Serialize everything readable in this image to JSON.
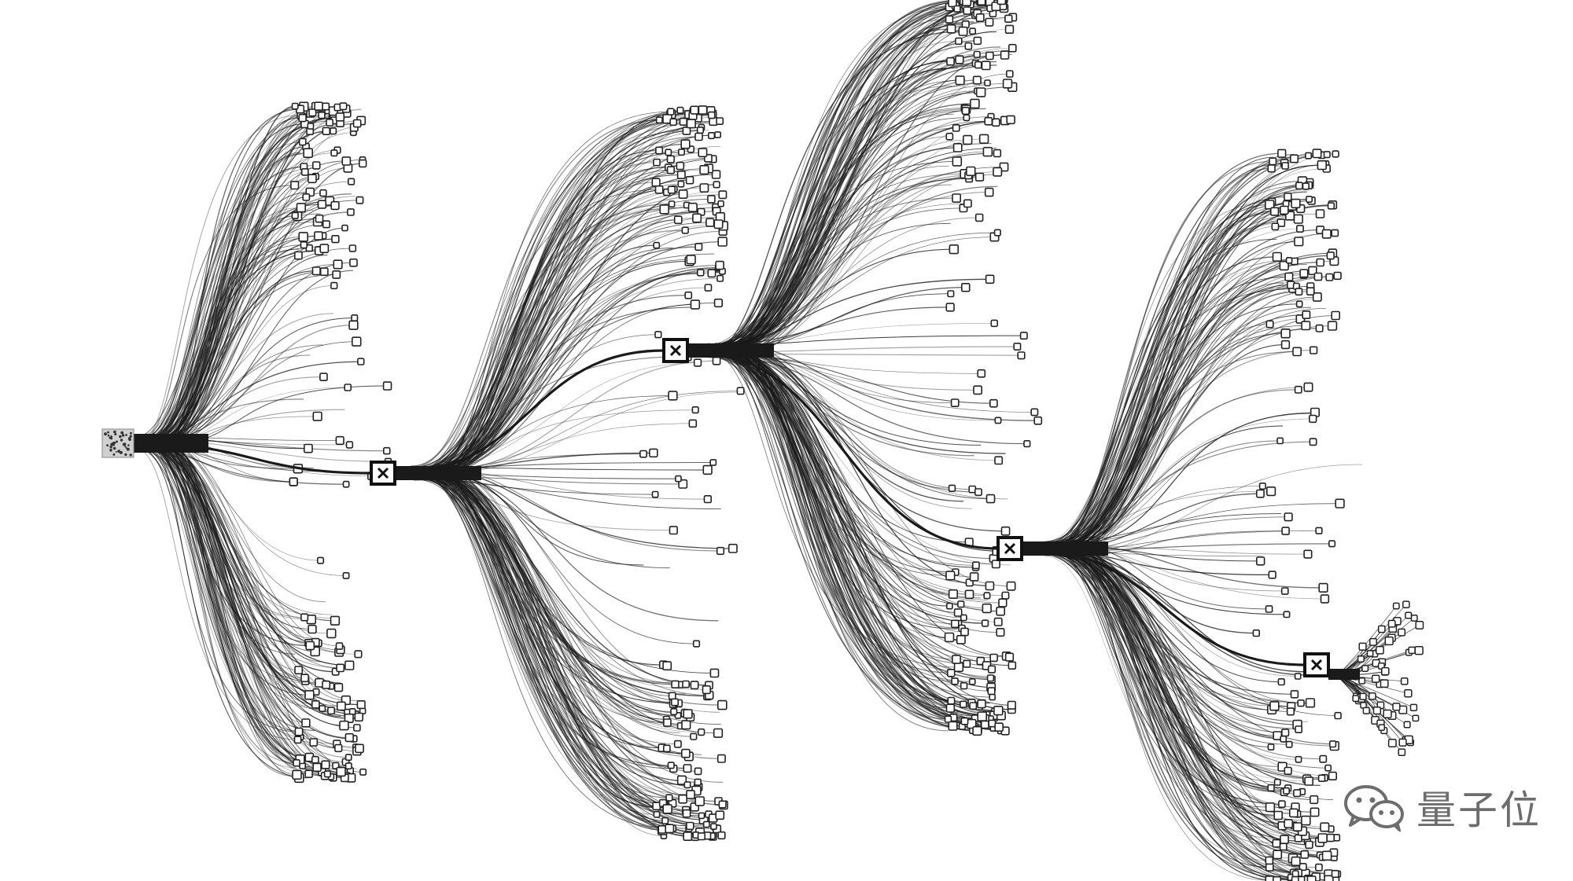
{
  "diagram": {
    "type": "branching-tree",
    "description_nodes": [
      {
        "id": "root",
        "kind": "dotted-square"
      },
      {
        "id": "hub-1",
        "kind": "square-node"
      },
      {
        "id": "hub-2",
        "kind": "square-node"
      },
      {
        "id": "hub-3",
        "kind": "square-node"
      },
      {
        "id": "hub-4",
        "kind": "square-node"
      }
    ],
    "edges": [
      {
        "from": "root",
        "to": "hub-1"
      },
      {
        "from": "hub-1",
        "to": "hub-2"
      },
      {
        "from": "hub-2",
        "to": "hub-3"
      },
      {
        "from": "hub-3",
        "to": "hub-4"
      }
    ],
    "stroke_color": "#1a1a1a",
    "leaf_color": "#222222"
  },
  "watermark": {
    "icon": "wechat-icon",
    "text": "量子位"
  }
}
